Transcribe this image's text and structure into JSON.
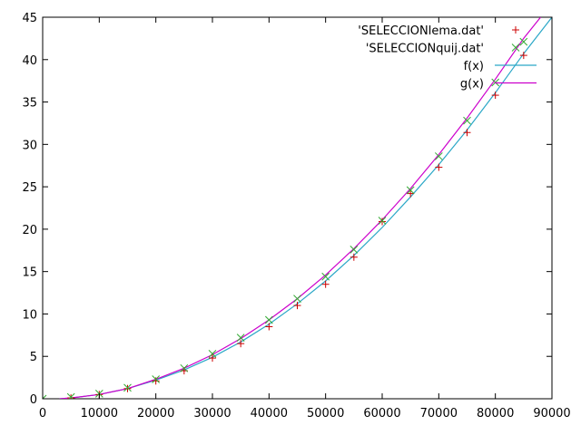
{
  "chart_data": {
    "type": "scatter",
    "title": "",
    "xlabel": "",
    "ylabel": "",
    "xlim": [
      0,
      90000
    ],
    "ylim": [
      0,
      45
    ],
    "x_ticks": [
      0,
      10000,
      20000,
      30000,
      40000,
      50000,
      60000,
      70000,
      80000,
      90000
    ],
    "y_ticks": [
      0,
      5,
      10,
      15,
      20,
      25,
      30,
      35,
      40,
      45
    ],
    "grid": false,
    "legend_position": "top-right",
    "series": [
      {
        "name": "'SELECCIONlema.dat'",
        "kind": "points",
        "marker": "plus",
        "color": "#cc0000",
        "x": [
          0,
          5000,
          10000,
          15000,
          20000,
          25000,
          30000,
          35000,
          40000,
          45000,
          50000,
          55000,
          60000,
          65000,
          70000,
          75000,
          80000,
          85000
        ],
        "y": [
          0,
          0.1,
          0.5,
          1.2,
          2.1,
          3.3,
          4.8,
          6.5,
          8.5,
          11.0,
          13.5,
          16.7,
          20.9,
          24.2,
          27.3,
          31.4,
          35.8,
          40.5
        ]
      },
      {
        "name": "'SELECCIONquij.dat'",
        "kind": "points",
        "marker": "cross",
        "color": "#33aa33",
        "x": [
          0,
          5000,
          10000,
          15000,
          20000,
          25000,
          30000,
          35000,
          40000,
          45000,
          50000,
          55000,
          60000,
          65000,
          70000,
          75000,
          80000,
          85000
        ],
        "y": [
          0,
          0.2,
          0.6,
          1.3,
          2.3,
          3.6,
          5.3,
          7.2,
          9.3,
          11.8,
          14.4,
          17.6,
          21.0,
          24.6,
          28.6,
          32.8,
          37.3,
          42.1
        ]
      },
      {
        "name": "f(x)",
        "kind": "line",
        "color": "#2aa7c7",
        "x": [
          3000,
          5000,
          10000,
          15000,
          20000,
          25000,
          30000,
          35000,
          40000,
          45000,
          50000,
          55000,
          60000,
          65000,
          70000,
          75000,
          80000,
          85000,
          90000
        ],
        "y": [
          0,
          0.1,
          0.5,
          1.2,
          2.2,
          3.4,
          4.9,
          6.7,
          8.8,
          11.2,
          13.9,
          16.9,
          20.2,
          23.8,
          27.6,
          31.7,
          36.1,
          40.7,
          45.0
        ]
      },
      {
        "name": "g(x)",
        "kind": "line",
        "color": "#cc00cc",
        "x": [
          3000,
          5000,
          10000,
          15000,
          20000,
          25000,
          30000,
          35000,
          40000,
          45000,
          50000,
          55000,
          60000,
          65000,
          70000,
          75000,
          80000,
          85000,
          88000
        ],
        "y": [
          0,
          0.1,
          0.5,
          1.2,
          2.3,
          3.6,
          5.2,
          7.1,
          9.3,
          11.8,
          14.6,
          17.7,
          21.1,
          24.8,
          28.8,
          33.1,
          37.7,
          42.5,
          45.0
        ]
      }
    ]
  }
}
